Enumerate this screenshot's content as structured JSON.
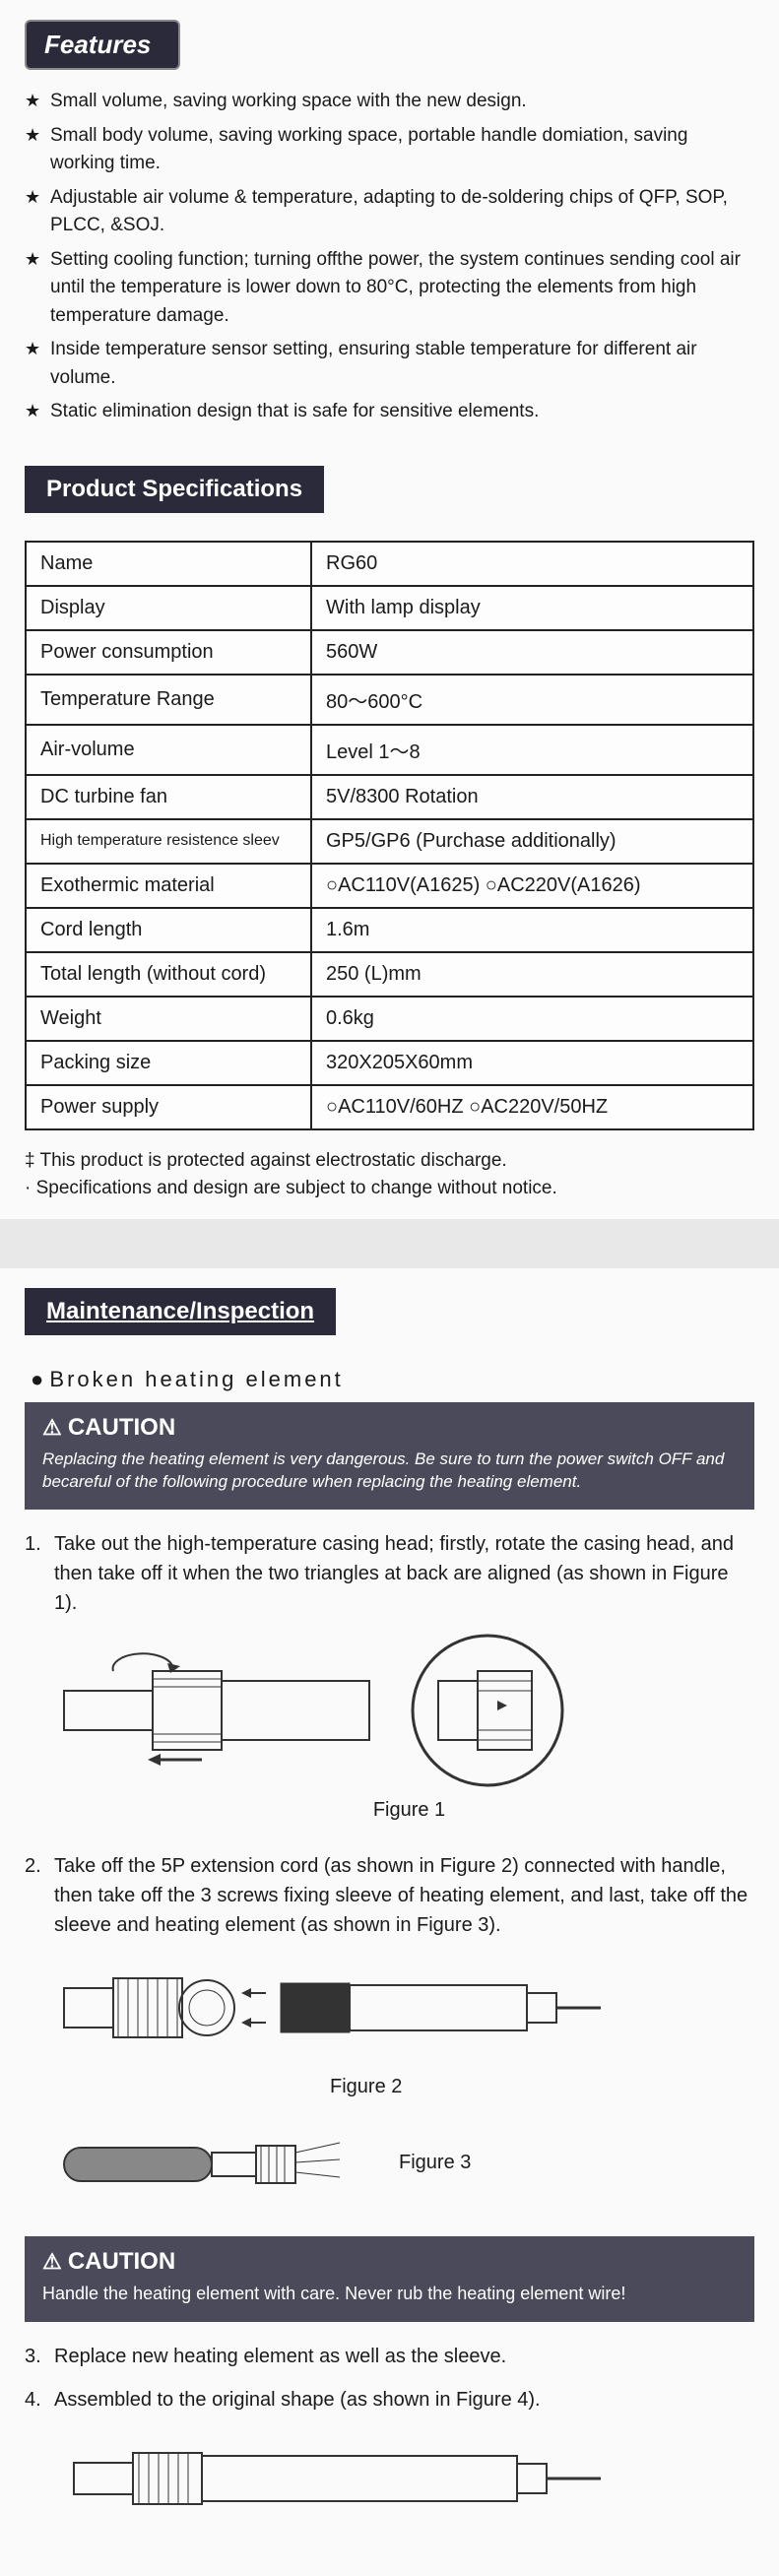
{
  "features": {
    "header": "Features",
    "items": [
      "Small volume, saving working space with the new design.",
      "Small body volume, saving working space, portable handle domiation, saving working time.",
      "Adjustable air volume & temperature, adapting to de-soldering chips of QFP, SOP, PLCC, &SOJ.",
      "Setting cooling function; turning offthe power, the system continues sending cool air until the temperature is lower down to 80°C, protecting the elements from high temperature damage.",
      "Inside temperature sensor setting, ensuring stable temperature for different air volume.",
      "Static elimination design that is safe for sensitive elements."
    ]
  },
  "specifications": {
    "header": "Product Specifications",
    "rows": [
      {
        "label": "Name",
        "value": "RG60"
      },
      {
        "label": "Display",
        "value": "With lamp display"
      },
      {
        "label": "Power consumption",
        "value": "560W"
      },
      {
        "label": "Temperature Range",
        "value": "80～600°C"
      },
      {
        "label": "Air-volume",
        "value": "Level 1～8"
      },
      {
        "label": "DC turbine fan",
        "value": "5V/8300 Rotation"
      },
      {
        "label": "High temperature resistence sleev",
        "value": "GP5/GP6 (Purchase additionally)"
      },
      {
        "label": "Exothermic material",
        "value": "○AC110V(A1625)   ○AC220V(A1626)"
      },
      {
        "label": "Cord length",
        "value": "1.6m"
      },
      {
        "label": "Total length (without cord)",
        "value": "250 (L)mm"
      },
      {
        "label": "Weight",
        "value": "0.6kg"
      },
      {
        "label": "Packing size",
        "value": "320X205X60mm"
      },
      {
        "label": "Power supply",
        "value": "○AC110V/60HZ   ○AC220V/50HZ"
      }
    ],
    "notes": [
      "‡ This product is protected against electrostatic discharge.",
      "· Specifications and design are subject to change without notice."
    ]
  },
  "maintenance": {
    "header": "Maintenance/Inspection",
    "sub_header": "Broken heating element",
    "caution1": {
      "title": "CAUTION",
      "body": "Replacing the heating element is very dangerous. Be sure to turn the power switch OFF and becareful of the following procedure when replacing the heating element."
    },
    "steps": {
      "s1": {
        "num": "1.",
        "text": "Take out the high-temperature casing head; firstly, rotate the casing head, and then take off it when the two triangles at back are aligned (as shown in Figure 1)."
      },
      "s2": {
        "num": "2.",
        "text": "Take off the 5P extension cord (as shown in Figure 2) connected with handle, then take off the 3 screws fixing sleeve of heating element, and last, take off the sleeve and heating element (as shown in Figure 3)."
      },
      "s3": {
        "num": "3.",
        "text": "Replace new heating element as well as the sleeve."
      },
      "s4": {
        "num": "4.",
        "text": "Assembled to the original shape (as shown in Figure 4)."
      }
    },
    "figure_labels": {
      "f1": "Figure 1",
      "f2": "Figure 2",
      "f3": "Figure 3"
    },
    "caution2": {
      "title": "CAUTION",
      "body": "Handle the heating element with care. Never rub the heating element wire!"
    }
  },
  "colors": {
    "header_bg": "#2a2a3a",
    "caution_bg": "#4a4a5a",
    "text": "#1a1a1a",
    "page_bg": "#fafafa",
    "border": "#222222"
  }
}
